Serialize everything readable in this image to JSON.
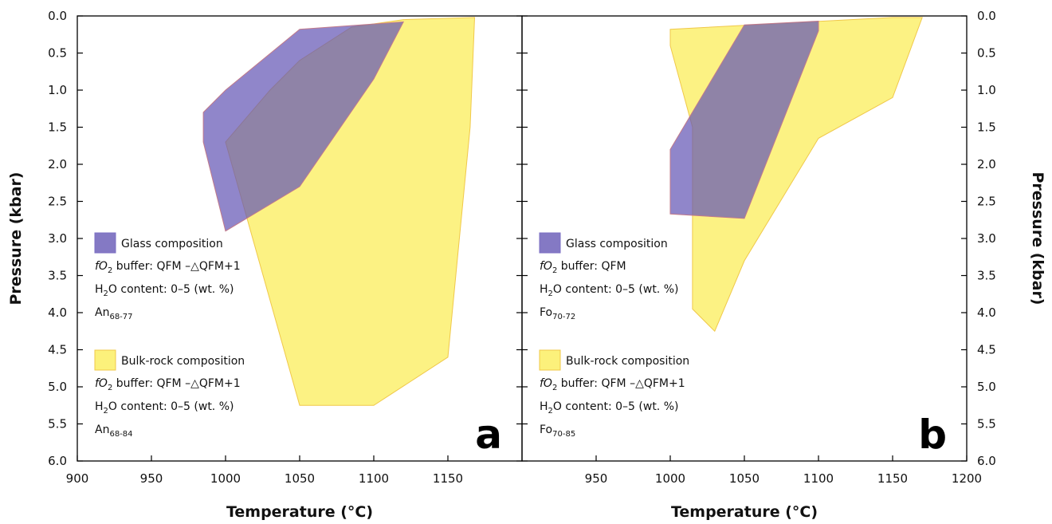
{
  "chart_data": [
    {
      "type": "area",
      "panel_label": "a",
      "xlabel": "Temperature (°C)",
      "ylabel": "Pressure (kbar)",
      "xlim": [
        900,
        1200
      ],
      "ylim": [
        0.0,
        6.0
      ],
      "y_inverted": true,
      "x_ticks": [
        900,
        950,
        1000,
        1050,
        1100,
        1150
      ],
      "x_tick_labels": [
        "900",
        "950",
        "1000",
        "1050",
        "1100",
        "1150"
      ],
      "y_ticks": [
        0.0,
        0.5,
        1.0,
        1.5,
        2.0,
        2.5,
        3.0,
        3.5,
        4.0,
        4.5,
        5.0,
        5.5,
        6.0
      ],
      "y_tick_labels": [
        "0.0",
        "0.5",
        "1.0",
        "1.5",
        "2.0",
        "2.5",
        "3.0",
        "3.5",
        "4.0",
        "4.5",
        "5.0",
        "5.5",
        "6.0"
      ],
      "series": [
        {
          "name": "Bulk-rock composition",
          "color": "#fbee5a",
          "opacity": 0.75,
          "x": [
            1000,
            1030,
            1050,
            1085,
            1120,
            1168,
            1165,
            1150,
            1100,
            1050
          ],
          "y": [
            1.7,
            1.0,
            0.6,
            0.15,
            0.05,
            0.02,
            1.5,
            4.6,
            5.25,
            5.25
          ]
        },
        {
          "name": "Glass composition",
          "color": "#6558b5",
          "opacity": 0.72,
          "x": [
            985,
            1000,
            1050,
            1120,
            1100,
            1050,
            1000,
            985
          ],
          "y": [
            1.3,
            1.0,
            0.18,
            0.08,
            0.85,
            2.3,
            2.9,
            1.7
          ]
        }
      ],
      "legend": [
        {
          "title": "Glass composition",
          "color": "#6558b5",
          "fo2_prefix": "fO",
          "fo2_sub": "2",
          "fo2_value": " buffer: QFM –△QFM+1",
          "h2o_prefix": "H",
          "h2o_sub": "2",
          "h2o_value": "O content: 0–5 (wt. %)",
          "mineral": "An",
          "mineral_sub": "68-77"
        },
        {
          "title": "Bulk-rock composition",
          "color": "#fbee5a",
          "fo2_prefix": "fO",
          "fo2_sub": "2",
          "fo2_value": " buffer: QFM –△QFM+1",
          "h2o_prefix": "H",
          "h2o_sub": "2",
          "h2o_value": "O content: 0–5 (wt. %)",
          "mineral": "An",
          "mineral_sub": "68-84"
        }
      ]
    },
    {
      "type": "area",
      "panel_label": "b",
      "xlabel": "Temperature (°C)",
      "ylabel": "Pressure (kbar)",
      "xlim": [
        900,
        1200
      ],
      "ylim": [
        0.0,
        6.0
      ],
      "y_inverted": true,
      "x_ticks": [
        950,
        1000,
        1050,
        1100,
        1150,
        1200
      ],
      "x_tick_labels": [
        "950",
        "1000",
        "1050",
        "1100",
        "1150",
        "1200"
      ],
      "y_ticks": [
        0.0,
        0.5,
        1.0,
        1.5,
        2.0,
        2.5,
        3.0,
        3.5,
        4.0,
        4.5,
        5.0,
        5.5,
        6.0
      ],
      "y_tick_labels": [
        "0.0",
        "0.5",
        "1.0",
        "1.5",
        "2.0",
        "2.5",
        "3.0",
        "3.5",
        "4.0",
        "4.5",
        "5.0",
        "5.5",
        "6.0"
      ],
      "series": [
        {
          "name": "Bulk-rock composition",
          "color": "#fbee5a",
          "opacity": 0.75,
          "x": [
            1000,
            1150,
            1170,
            1150,
            1100,
            1050,
            1030,
            1015,
            1015,
            1000
          ],
          "y": [
            0.18,
            0.02,
            0.02,
            1.1,
            1.65,
            3.3,
            4.25,
            3.95,
            1.5,
            0.4
          ]
        },
        {
          "name": "Glass composition",
          "color": "#6558b5",
          "opacity": 0.72,
          "x": [
            1000,
            1050,
            1100,
            1100,
            1050,
            1000
          ],
          "y": [
            1.8,
            0.12,
            0.07,
            0.2,
            2.73,
            2.67
          ]
        }
      ],
      "legend": [
        {
          "title": "Glass composition",
          "color": "#6558b5",
          "fo2_prefix": "fO",
          "fo2_sub": "2",
          "fo2_value": " buffer: QFM",
          "h2o_prefix": "H",
          "h2o_sub": "2",
          "h2o_value": "O content: 0–5 (wt. %)",
          "mineral": "Fo",
          "mineral_sub": "70-72"
        },
        {
          "title": "Bulk-rock composition",
          "color": "#fbee5a",
          "fo2_prefix": "fO",
          "fo2_sub": "2",
          "fo2_value": " buffer: QFM –△QFM+1",
          "h2o_prefix": "H",
          "h2o_sub": "2",
          "h2o_value": "O content: 0–5 (wt. %)",
          "mineral": "Fo",
          "mineral_sub": "70-85"
        }
      ]
    }
  ]
}
